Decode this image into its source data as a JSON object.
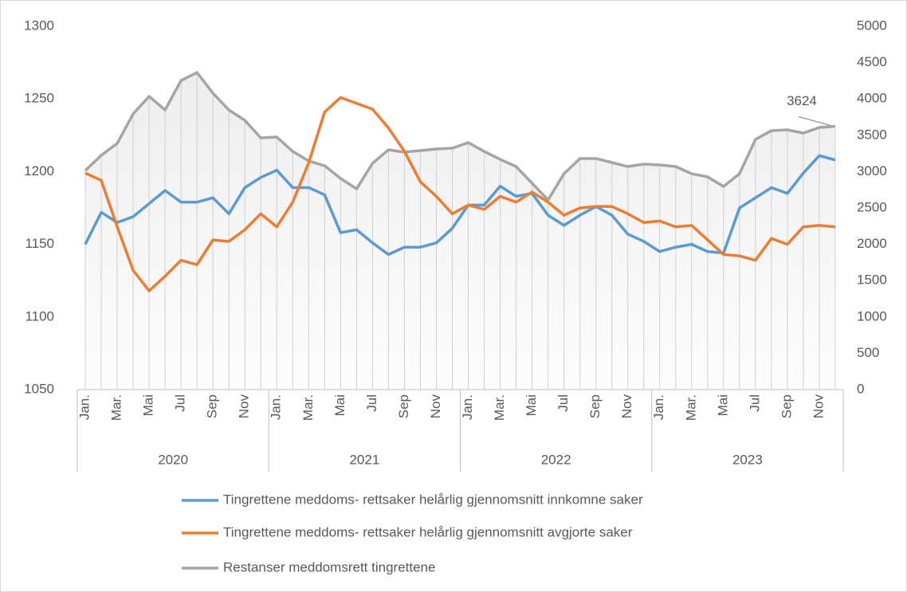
{
  "chart_data": {
    "type": "line",
    "categories": [
      "Jan.",
      null,
      "Mar.",
      null,
      "Mai",
      null,
      "Jul",
      null,
      "Sep",
      null,
      "Nov",
      null,
      "Jan.",
      null,
      "Mar.",
      null,
      "Mai",
      null,
      "Jul",
      null,
      "Sep",
      null,
      "Nov",
      null,
      "Jan.",
      null,
      "Mar.",
      null,
      "Mai",
      null,
      "Jul",
      null,
      "Sep",
      null,
      "Nov",
      null,
      "Jan.",
      null,
      "Mar.",
      null,
      "Mai",
      null,
      "Jul",
      null,
      "Sep",
      null,
      "Nov",
      null
    ],
    "category_groups": [
      "2020",
      "2021",
      "2022",
      "2023"
    ],
    "ylim": [
      1050,
      1300
    ],
    "yticks": [
      1050,
      1100,
      1150,
      1200,
      1250,
      1300
    ],
    "y2lim": [
      0,
      5000
    ],
    "y2ticks": [
      0,
      500,
      1000,
      1500,
      2000,
      2500,
      3000,
      3500,
      4000,
      4500,
      5000
    ],
    "grid": false,
    "legend": "bottom",
    "series": [
      {
        "name": "Tingrettene meddoms- rettsaker helårlig gjennomsnitt innkomne saker",
        "color": "#5b9bd5",
        "values": [
          1150,
          1172,
          1165,
          1169,
          1178,
          1187,
          1179,
          1179,
          1182,
          1171,
          1189,
          1196,
          1201,
          1189,
          1189,
          1184,
          1158,
          1160,
          1151,
          1143,
          1148,
          1148,
          1151,
          1161,
          1177,
          1177,
          1190,
          1183,
          1185,
          1170,
          1163,
          1170,
          1176,
          1170,
          1157,
          1152,
          1145,
          1148,
          1150,
          1145,
          1144,
          1175,
          1182,
          1189,
          1185,
          1199,
          1211,
          1208
        ]
      },
      {
        "name": "Tingrettene meddoms- rettsaker helårlig gjennomsnitt avgjorte saker",
        "color": "#ed7d31",
        "values": [
          1199,
          1194,
          1162,
          1132,
          1118,
          1128,
          1139,
          1136,
          1153,
          1152,
          1160,
          1171,
          1162,
          1179,
          1206,
          1241,
          1251,
          1247,
          1243,
          1230,
          1214,
          1193,
          1183,
          1171,
          1177,
          1174,
          1183,
          1179,
          1186,
          1179,
          1170,
          1175,
          1176,
          1176,
          1171,
          1165,
          1166,
          1162,
          1163,
          1153,
          1143,
          1142,
          1139,
          1154,
          1150,
          1162,
          1163,
          1162
        ]
      },
      {
        "name": "Restanser meddomsrett tingrettene",
        "color": "#a5a5a5",
        "axis": "y2",
        "values": [
          3015,
          3224,
          3388,
          3794,
          4035,
          3849,
          4254,
          4364,
          4079,
          3849,
          3706,
          3465,
          3476,
          3278,
          3147,
          3081,
          2906,
          2763,
          3114,
          3300,
          3268,
          3290,
          3311,
          3322,
          3399,
          3278,
          3169,
          3070,
          2840,
          2610,
          2971,
          3180,
          3180,
          3125,
          3070,
          3103,
          3092,
          3070,
          2971,
          2928,
          2796,
          2971,
          3443,
          3564,
          3575,
          3531,
          3607,
          3624
        ]
      }
    ]
  }
}
